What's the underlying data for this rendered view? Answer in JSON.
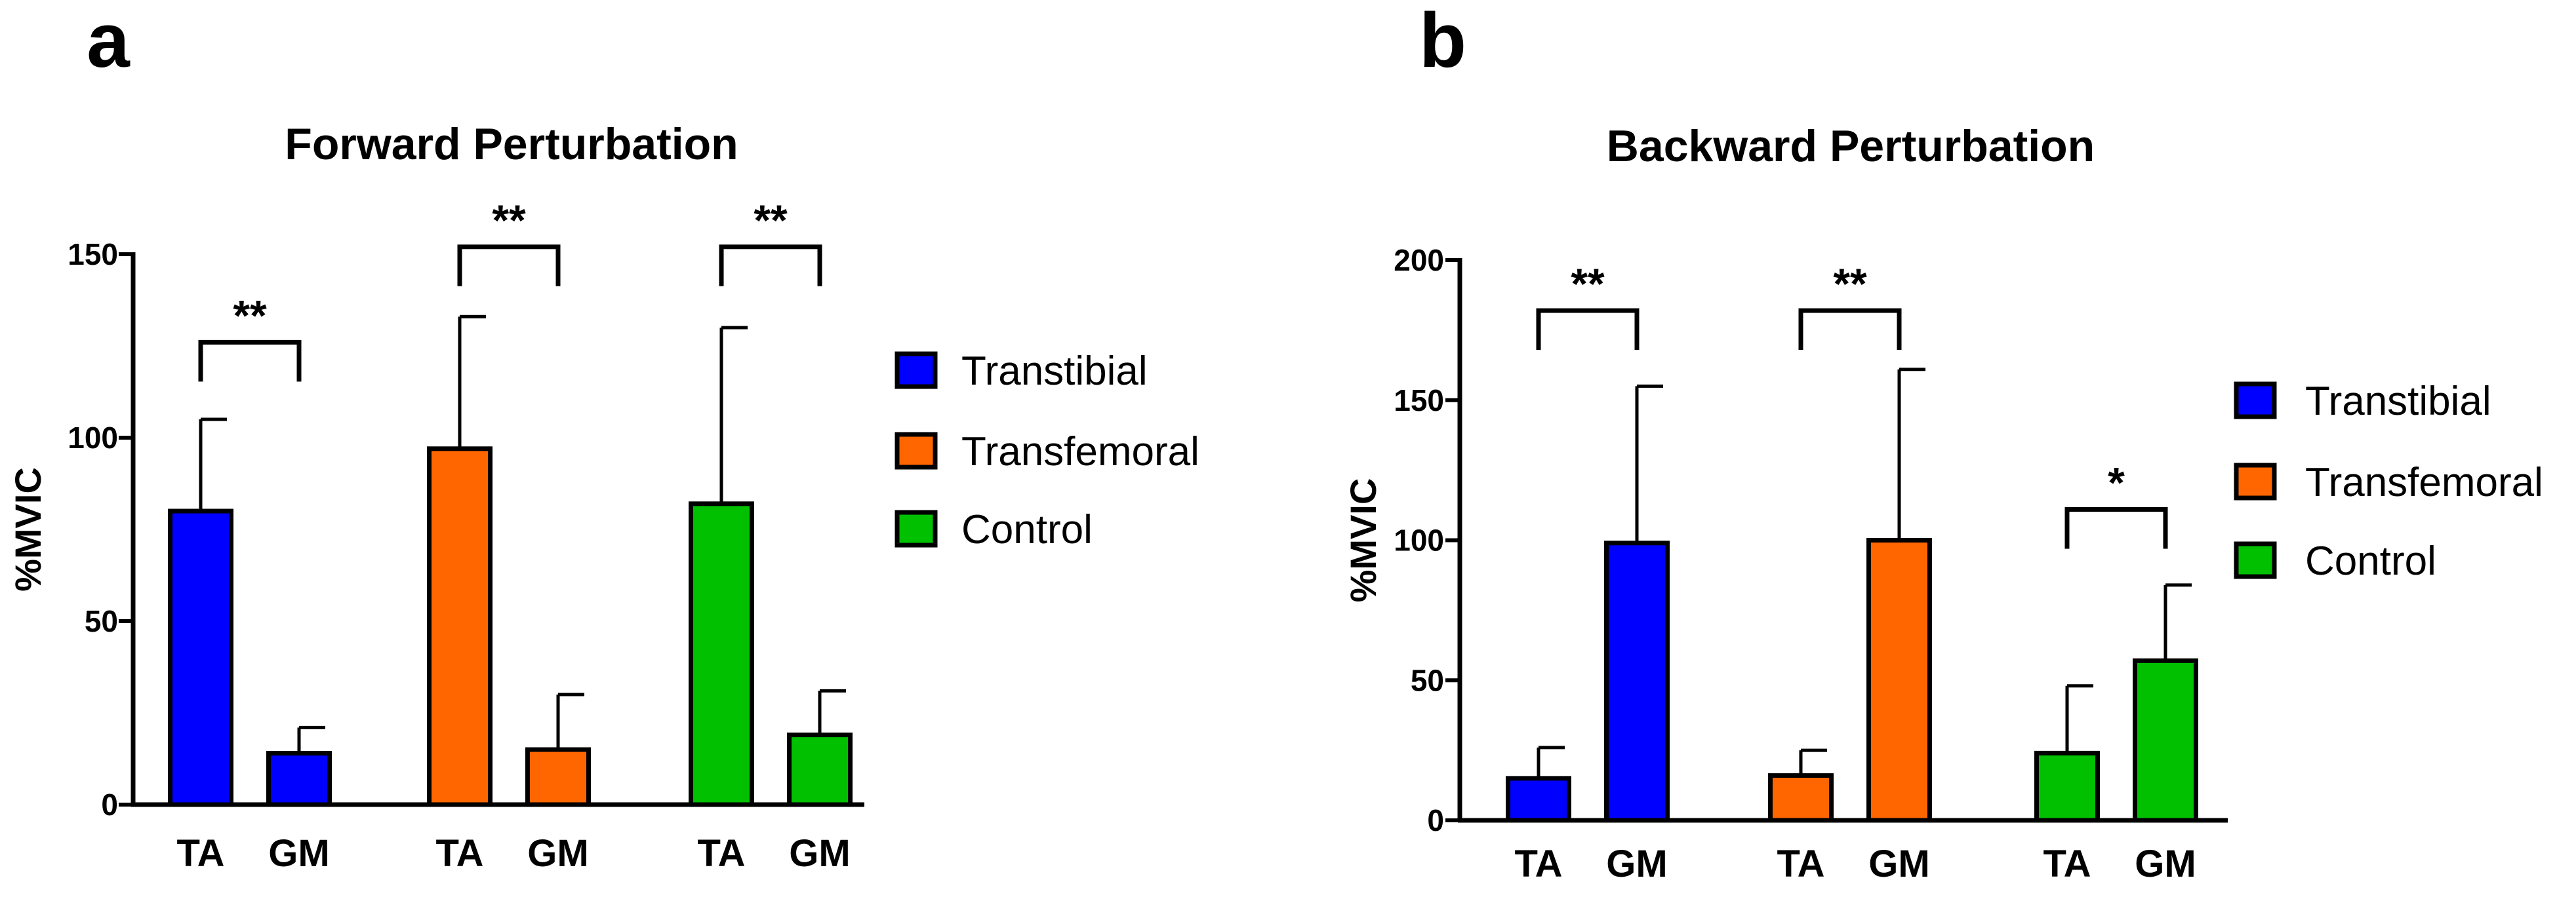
{
  "chart_data": [
    {
      "panel": "a",
      "type": "bar",
      "title": "Forward Perturbation",
      "xlabel": "",
      "ylabel": "%MVIC",
      "ylim": [
        0,
        150
      ],
      "yticks": [
        0,
        50,
        100,
        150
      ],
      "categories": [
        "TA",
        "GM"
      ],
      "groups": [
        {
          "name": "Transtibial",
          "color": "#0000ff",
          "values": [
            80,
            14
          ],
          "errors": [
            25,
            7
          ]
        },
        {
          "name": "Transfemoral",
          "color": "#ff6600",
          "values": [
            97,
            15
          ],
          "errors": [
            36,
            15
          ]
        },
        {
          "name": "Control",
          "color": "#00c000",
          "values": [
            82,
            19
          ],
          "errors": [
            48,
            12
          ]
        }
      ],
      "significance": [
        {
          "group": 0,
          "label": "**",
          "y": 126
        },
        {
          "group": 1,
          "label": "**",
          "y": 152
        },
        {
          "group": 2,
          "label": "**",
          "y": 152
        }
      ],
      "legend": [
        "Transtibial",
        "Transfemoral",
        "Control"
      ]
    },
    {
      "panel": "b",
      "type": "bar",
      "title": "Backward Perturbation",
      "xlabel": "",
      "ylabel": "%MVIC",
      "ylim": [
        0,
        200
      ],
      "yticks": [
        0,
        50,
        100,
        150,
        200
      ],
      "categories": [
        "TA",
        "GM"
      ],
      "groups": [
        {
          "name": "Transtibial",
          "color": "#0000ff",
          "values": [
            15,
            99
          ],
          "errors": [
            11,
            56
          ]
        },
        {
          "name": "Transfemoral",
          "color": "#ff6600",
          "values": [
            16,
            100
          ],
          "errors": [
            9,
            61
          ]
        },
        {
          "name": "Control",
          "color": "#00c000",
          "values": [
            24,
            57
          ],
          "errors": [
            24,
            27
          ]
        }
      ],
      "significance": [
        {
          "group": 0,
          "label": "**",
          "y": 182
        },
        {
          "group": 1,
          "label": "**",
          "y": 182
        },
        {
          "group": 2,
          "label": "*",
          "y": 111
        }
      ],
      "legend": [
        "Transtibial",
        "Transfemoral",
        "Control"
      ]
    }
  ]
}
